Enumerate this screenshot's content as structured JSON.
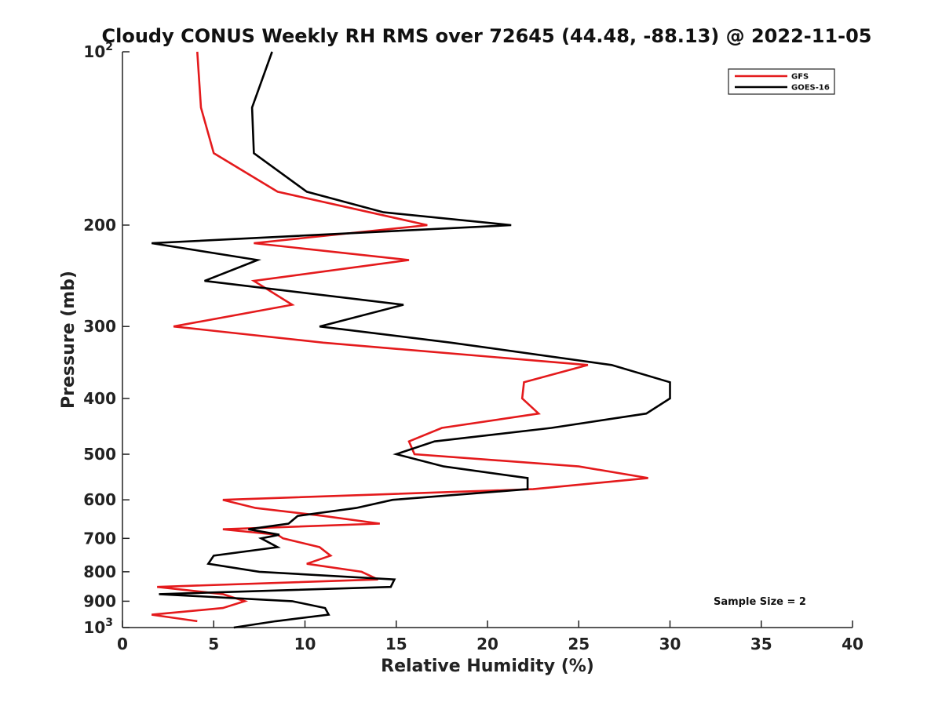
{
  "chart_data": {
    "type": "line",
    "title": "Cloudy CONUS Weekly RH RMS over 72645 (44.48, -88.13) @ 2022-11-05",
    "xlabel": "Relative Humidity (%)",
    "ylabel": "Pressure (mb)",
    "xlim": [
      0,
      40
    ],
    "ylim": [
      100,
      1000
    ],
    "y_scale": "log",
    "y_reversed": true,
    "x_ticks": [
      "0",
      "5",
      "10",
      "15",
      "20",
      "25",
      "30",
      "35",
      "40"
    ],
    "y_ticks": [
      {
        "value": 200,
        "label": "200"
      },
      {
        "value": 300,
        "label": "300"
      },
      {
        "value": 400,
        "label": "400"
      },
      {
        "value": 500,
        "label": "500"
      },
      {
        "value": 600,
        "label": "600"
      },
      {
        "value": 700,
        "label": "700"
      },
      {
        "value": 800,
        "label": "800"
      },
      {
        "value": 900,
        "label": "900"
      }
    ],
    "y_end_labels": {
      "top": {
        "base": "10",
        "exp": "2"
      },
      "bottom": {
        "base": "10",
        "exp": "3"
      }
    },
    "grid": false,
    "legend_position": "top-right",
    "annotation": "Sample Size = 2",
    "series": [
      {
        "name": "GFS",
        "color": "#e41a1c",
        "points": [
          [
            4.1,
            100
          ],
          [
            4.3,
            125
          ],
          [
            5.0,
            150
          ],
          [
            8.5,
            175
          ],
          [
            16.7,
            200
          ],
          [
            7.2,
            215
          ],
          [
            15.7,
            230
          ],
          [
            7.2,
            250
          ],
          [
            9.3,
            275
          ],
          [
            2.8,
            300
          ],
          [
            11.0,
            320
          ],
          [
            25.5,
            350
          ],
          [
            22.0,
            375
          ],
          [
            21.9,
            400
          ],
          [
            22.8,
            425
          ],
          [
            17.5,
            450
          ],
          [
            15.7,
            475
          ],
          [
            16.0,
            500
          ],
          [
            25.0,
            525
          ],
          [
            28.8,
            550
          ],
          [
            22.5,
            575
          ],
          [
            5.5,
            600
          ],
          [
            7.3,
            620
          ],
          [
            11.0,
            640
          ],
          [
            14.1,
            660
          ],
          [
            5.5,
            675
          ],
          [
            8.5,
            690
          ],
          [
            8.8,
            700
          ],
          [
            10.8,
            725
          ],
          [
            11.4,
            750
          ],
          [
            10.1,
            775
          ],
          [
            13.1,
            800
          ],
          [
            14.0,
            825
          ],
          [
            1.9,
            850
          ],
          [
            5.5,
            875
          ],
          [
            6.7,
            900
          ],
          [
            5.5,
            925
          ],
          [
            1.6,
            950
          ],
          [
            4.1,
            975
          ]
        ]
      },
      {
        "name": "GOES-16",
        "color": "#000000",
        "points": [
          [
            8.2,
            100
          ],
          [
            7.1,
            125
          ],
          [
            7.2,
            150
          ],
          [
            10.1,
            175
          ],
          [
            14.3,
            190
          ],
          [
            21.3,
            200
          ],
          [
            1.6,
            215
          ],
          [
            7.4,
            230
          ],
          [
            4.5,
            250
          ],
          [
            15.4,
            275
          ],
          [
            10.8,
            300
          ],
          [
            18.0,
            320
          ],
          [
            26.8,
            350
          ],
          [
            30.0,
            375
          ],
          [
            30.0,
            400
          ],
          [
            28.7,
            425
          ],
          [
            23.5,
            450
          ],
          [
            17.1,
            475
          ],
          [
            15.0,
            500
          ],
          [
            17.6,
            525
          ],
          [
            22.2,
            550
          ],
          [
            22.2,
            575
          ],
          [
            14.8,
            600
          ],
          [
            12.8,
            620
          ],
          [
            9.6,
            640
          ],
          [
            9.1,
            660
          ],
          [
            6.9,
            675
          ],
          [
            8.6,
            690
          ],
          [
            7.6,
            700
          ],
          [
            8.5,
            725
          ],
          [
            5.0,
            750
          ],
          [
            4.7,
            775
          ],
          [
            7.5,
            800
          ],
          [
            14.9,
            825
          ],
          [
            14.7,
            850
          ],
          [
            2.0,
            875
          ],
          [
            9.3,
            900
          ],
          [
            11.1,
            925
          ],
          [
            11.3,
            950
          ],
          [
            8.4,
            975
          ],
          [
            6.1,
            1000
          ]
        ]
      }
    ]
  }
}
